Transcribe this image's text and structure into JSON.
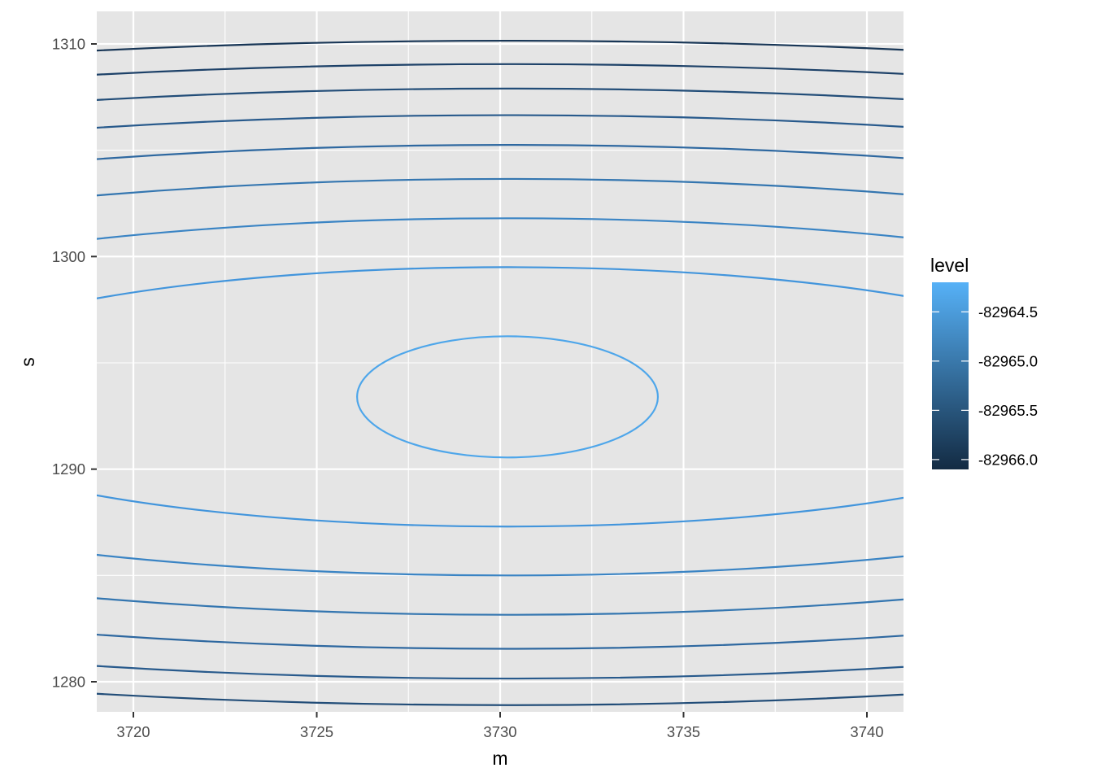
{
  "chart_data": {
    "type": "contour",
    "title": "",
    "xlabel": "m",
    "ylabel": "s",
    "xlim": [
      3719,
      3741
    ],
    "ylim": [
      1278.6,
      1311.3
    ],
    "x_ticks": [
      3720,
      3725,
      3730,
      3735,
      3740
    ],
    "x_tick_labels": [
      "3720",
      "3725",
      "3730",
      "3735",
      "3740"
    ],
    "y_ticks": [
      1280,
      1290,
      1300,
      1310
    ],
    "y_tick_labels": [
      "1280",
      "1290",
      "1300",
      "1310"
    ],
    "grid": true,
    "panel_background": "#e5e5e5",
    "center": {
      "m": 3730.2,
      "s": 1293.4
    },
    "legend": {
      "title": "level",
      "position": "right",
      "color_low": "#132b43",
      "color_high": "#56b1f7",
      "range": [
        -82966.1,
        -82964.2
      ],
      "ticks": [
        -82964.5,
        -82965.0,
        -82965.5,
        -82966.0
      ],
      "tick_labels": [
        "-82964.5",
        "-82965.0",
        "-82965.5",
        "-82966.0"
      ]
    },
    "contours": [
      {
        "level": -82964.3,
        "a": 4.1,
        "b": 2.85,
        "color": "#4ea6ea"
      },
      {
        "level": -82964.5,
        "a": 17.2,
        "b": 6.1,
        "color": "#4295dc"
      },
      {
        "level": -82964.7,
        "a": 24.0,
        "b": 8.4,
        "color": "#3a84c4"
      },
      {
        "level": -82964.9,
        "a": 29.3,
        "b": 10.25,
        "color": "#3476b0"
      },
      {
        "level": -82965.1,
        "a": 33.85,
        "b": 11.85,
        "color": "#2e68a0"
      },
      {
        "level": -82965.3,
        "a": 37.9,
        "b": 13.25,
        "color": "#285a8c"
      },
      {
        "level": -82965.5,
        "a": 41.5,
        "b": 14.5,
        "color": "#224d78"
      },
      {
        "level": -82965.7,
        "a": 44.8,
        "b": 15.65,
        "color": "#1d4168"
      },
      {
        "level": -82965.9,
        "a": 47.9,
        "b": 16.75,
        "color": "#183656"
      }
    ]
  }
}
